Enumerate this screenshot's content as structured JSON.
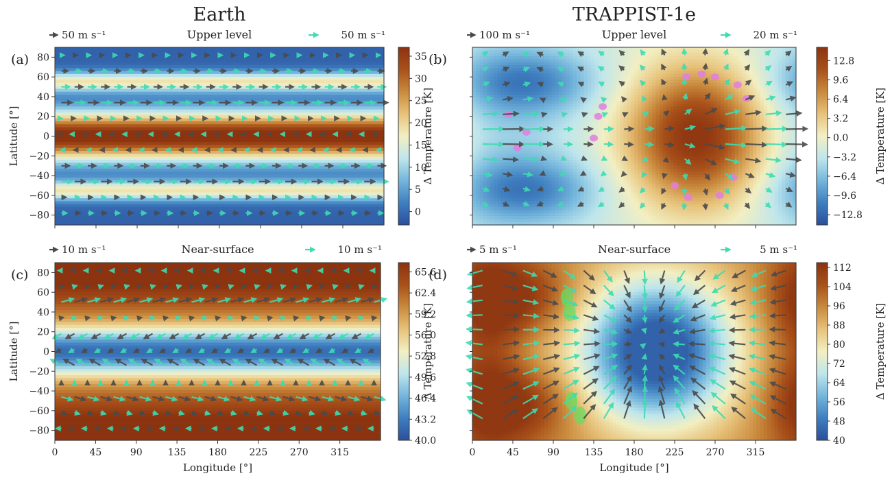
{
  "figure": {
    "column_titles": [
      "Earth",
      "TRAPPIST-1e"
    ],
    "colors": {
      "colormap": [
        "#2a4f9c",
        "#3f7fc0",
        "#74b6dc",
        "#bfe6ec",
        "#f2efc2",
        "#e7c27a",
        "#c98a3d",
        "#a8511a",
        "#8c3310"
      ],
      "arrow_dark": "#4a4a4a",
      "arrow_light": "#3ddcb2",
      "substellar_magenta": "#e07ee0",
      "substellar_green": "#5fe05f"
    }
  },
  "chart_data": [
    {
      "panel": "(a)",
      "type": "heatmap",
      "title": "Upper level",
      "planet": "Earth",
      "ref_arrows": {
        "left": "50 m s⁻¹",
        "right": "50 m s⁻¹"
      },
      "xlabel": "",
      "ylabel": "Latitude [°]",
      "xlim": [
        0,
        360
      ],
      "ylim": [
        -90,
        90
      ],
      "yticks": [
        80,
        60,
        40,
        20,
        0,
        -20,
        -40,
        -60,
        -80
      ],
      "xticks": [],
      "colorbar": {
        "label": "Δ Temperature [K]",
        "ticks": [
          "35",
          "30",
          "25",
          "20",
          "15",
          "10",
          "5",
          "0"
        ],
        "vmin": -3,
        "vmax": 37
      },
      "field": "zonal_bands_upper",
      "winds": "zonal_jets_upper"
    },
    {
      "panel": "(b)",
      "type": "heatmap",
      "title": "Upper level",
      "planet": "TRAPPIST-1e",
      "ref_arrows": {
        "left": "100 m s⁻¹",
        "right": "20 m s⁻¹"
      },
      "xlabel": "",
      "ylabel": "",
      "xlim": [
        0,
        360
      ],
      "ylim": [
        -90,
        90
      ],
      "yticks": [],
      "xticks": [],
      "colorbar": {
        "label": "Δ Temperature [K]",
        "ticks": [
          "12.8",
          "9.6",
          "6.4",
          "3.2",
          "0.0",
          "−3.2",
          "−6.4",
          "−9.6",
          "−12.8"
        ],
        "vmin": -14.5,
        "vmax": 15
      },
      "field": "dayside_hotspot_upper",
      "winds": "superrotation_upper"
    },
    {
      "panel": "(c)",
      "type": "heatmap",
      "title": "Near-surface",
      "planet": "Earth",
      "ref_arrows": {
        "left": "10 m s⁻¹",
        "right": "10 m s⁻¹"
      },
      "xlabel": "Longitude [°]",
      "ylabel": "Latitude [°]",
      "xlim": [
        0,
        360
      ],
      "ylim": [
        -90,
        90
      ],
      "yticks": [
        80,
        60,
        40,
        20,
        0,
        -20,
        -40,
        -60,
        -80
      ],
      "xticks": [
        0,
        45,
        90,
        135,
        180,
        225,
        270,
        315
      ],
      "colorbar": {
        "label": "Δ Temperature [K]",
        "ticks": [
          "65.6",
          "62.4",
          "59.2",
          "56.0",
          "52.8",
          "49.6",
          "46.4",
          "43.2",
          "40.0"
        ],
        "vmin": 40,
        "vmax": 67
      },
      "field": "zonal_bands_surface",
      "winds": "trade_winds_surface"
    },
    {
      "panel": "(d)",
      "type": "heatmap",
      "title": "Near-surface",
      "planet": "TRAPPIST-1e",
      "ref_arrows": {
        "left": "5 m s⁻¹",
        "right": "5 m s⁻¹"
      },
      "xlabel": "Longitude [°]",
      "ylabel": "",
      "xlim": [
        0,
        360
      ],
      "ylim": [
        -90,
        90
      ],
      "yticks": [],
      "xticks": [
        0,
        45,
        90,
        135,
        180,
        225,
        270,
        315
      ],
      "colorbar": {
        "label": "Δ Temperature [K]",
        "ticks": [
          "112",
          "104",
          "96",
          "88",
          "80",
          "72",
          "64",
          "56",
          "48",
          "40"
        ],
        "vmin": 40,
        "vmax": 114
      },
      "field": "dayside_coldspot_surface",
      "winds": "convergence_surface"
    }
  ]
}
